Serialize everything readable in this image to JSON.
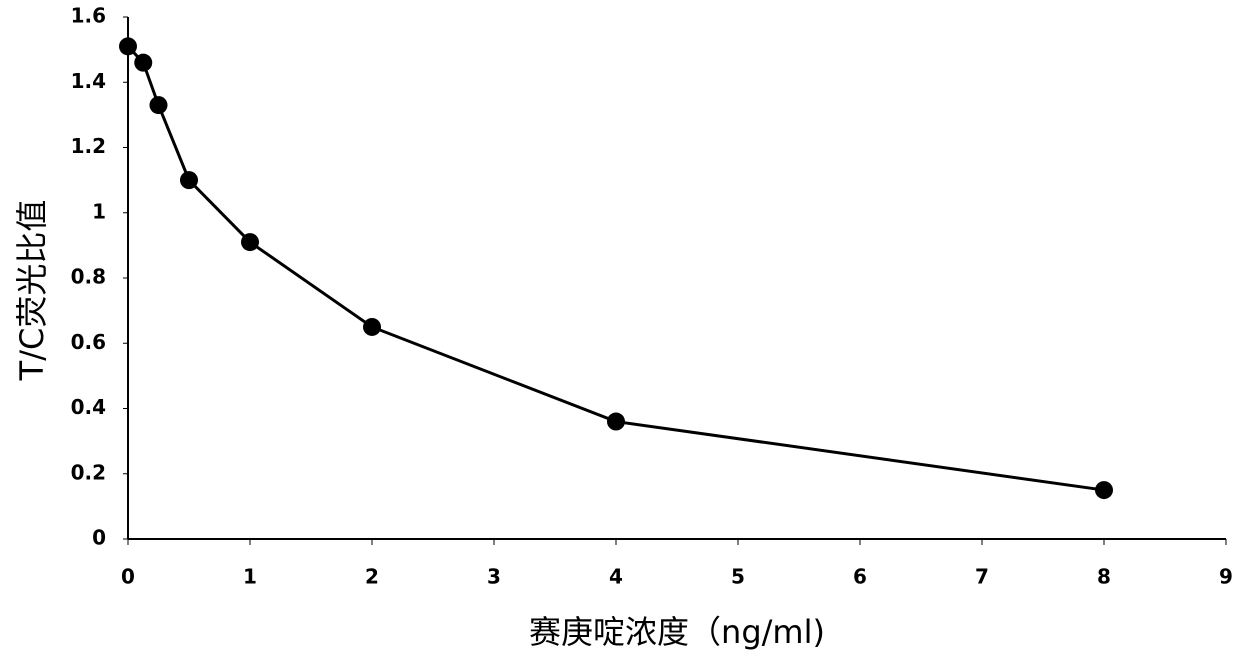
{
  "chart_data": {
    "type": "line",
    "x_label": "赛庚啶浓度（ng/ml)",
    "y_label": "T/C荧光比值",
    "x": [
      0,
      0.125,
      0.25,
      0.5,
      1,
      2,
      4,
      8
    ],
    "series": [
      {
        "color": "#000000",
        "values": [
          1.51,
          1.46,
          1.33,
          1.1,
          0.91,
          0.65,
          0.36,
          0.15
        ]
      }
    ],
    "xlim": [
      0,
      9
    ],
    "xticks": [
      0,
      1,
      2,
      3,
      4,
      5,
      6,
      7,
      8,
      9
    ],
    "ylim": [
      0,
      1.6
    ],
    "yticks": [
      0,
      0.2,
      0.4,
      0.6,
      0.8,
      1,
      1.2,
      1.4,
      1.6
    ],
    "grid": false
  }
}
